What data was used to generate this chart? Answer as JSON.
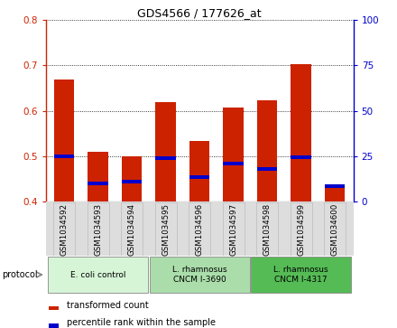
{
  "title": "GDS4566 / 177626_at",
  "samples": [
    "GSM1034592",
    "GSM1034593",
    "GSM1034594",
    "GSM1034595",
    "GSM1034596",
    "GSM1034597",
    "GSM1034598",
    "GSM1034599",
    "GSM1034600"
  ],
  "transformed_count_top": [
    0.668,
    0.51,
    0.5,
    0.618,
    0.533,
    0.607,
    0.623,
    0.703,
    0.43
  ],
  "transformed_count_bottom": [
    0.4,
    0.4,
    0.4,
    0.4,
    0.4,
    0.4,
    0.4,
    0.4,
    0.4
  ],
  "percentile_values": [
    0.5,
    0.44,
    0.445,
    0.495,
    0.455,
    0.483,
    0.472,
    0.497,
    0.435
  ],
  "ylim_left": [
    0.4,
    0.8
  ],
  "ylim_right": [
    0,
    100
  ],
  "yticks_left": [
    0.4,
    0.5,
    0.6,
    0.7,
    0.8
  ],
  "yticks_right": [
    0,
    25,
    50,
    75,
    100
  ],
  "groups": [
    {
      "label": "E. coli control",
      "indices": [
        0,
        1,
        2
      ],
      "color": "#d6f5d6"
    },
    {
      "label": "L. rhamnosus\nCNCM I-3690",
      "indices": [
        3,
        4,
        5
      ],
      "color": "#aaddaa"
    },
    {
      "label": "L. rhamnosus\nCNCM I-4317",
      "indices": [
        6,
        7,
        8
      ],
      "color": "#55bb55"
    }
  ],
  "bar_color_red": "#cc2200",
  "bar_color_blue": "#0000cc",
  "bar_width": 0.6,
  "background_color": "#ffffff",
  "left_axis_color": "#cc2200",
  "right_axis_color": "#0000cc",
  "name_box_color": "#dddddd",
  "name_box_edge_color": "#bbbbbb"
}
